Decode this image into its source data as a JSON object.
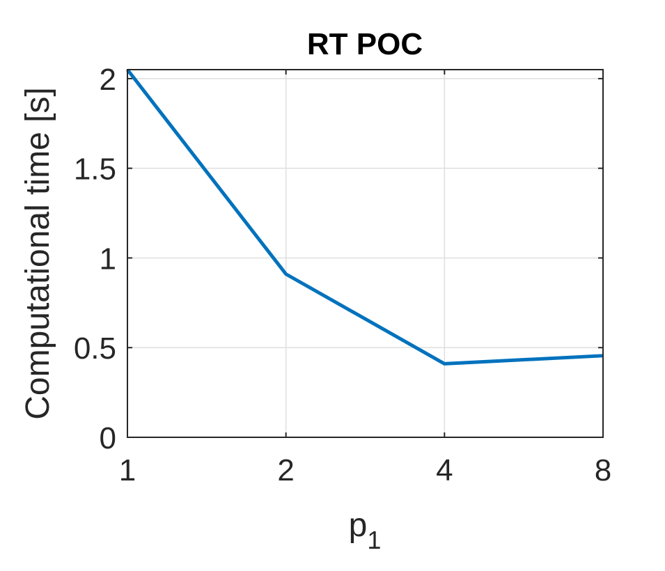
{
  "chart_data": {
    "type": "line",
    "title": "RT POC",
    "xlabel": {
      "main": "p",
      "subscript": "1"
    },
    "ylabel": "Computational time [s]",
    "xscale": "log2",
    "x": [
      1,
      2,
      4,
      8
    ],
    "xticks": [
      "1",
      "2",
      "4",
      "8"
    ],
    "ylim": [
      0,
      2.05
    ],
    "yticks": [
      0,
      0.5,
      1,
      1.5,
      2
    ],
    "ytick_labels": [
      "0",
      "0.5",
      "1",
      "1.5",
      "2"
    ],
    "grid": true,
    "series": [
      {
        "values": [
          2.05,
          0.91,
          0.41,
          0.455
        ],
        "color": "#0072BD"
      }
    ]
  }
}
